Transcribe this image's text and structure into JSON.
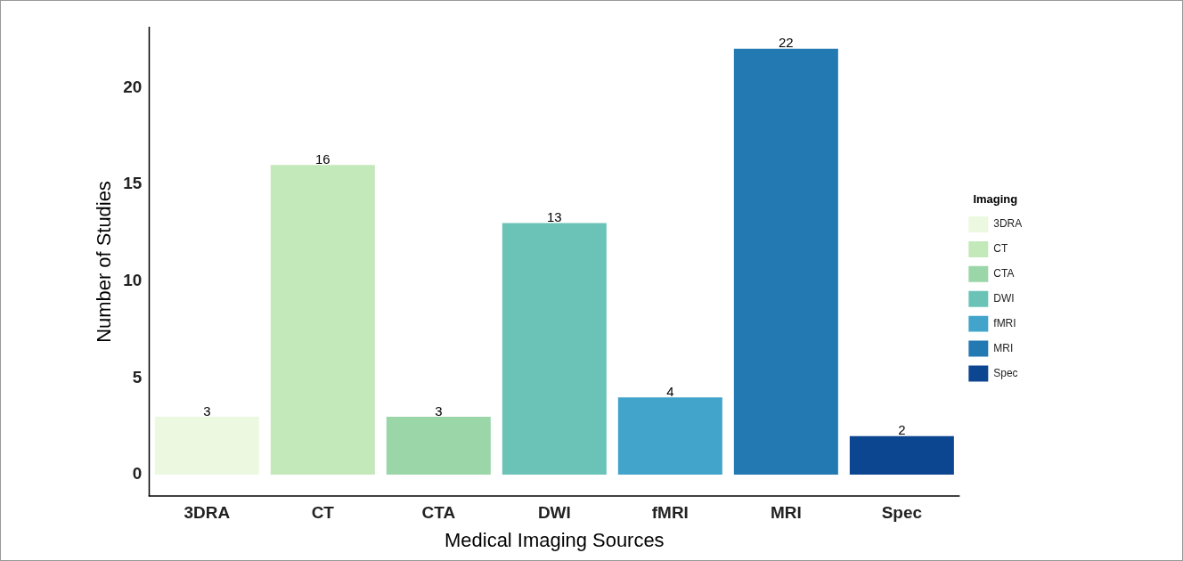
{
  "chart_data": {
    "type": "bar",
    "xlabel": "Medical Imaging Sources",
    "ylabel": "Number of Studies",
    "legend_title": "Imaging",
    "categories": [
      "3DRA",
      "CT",
      "CTA",
      "DWI",
      "fMRI",
      "MRI",
      "Spec"
    ],
    "series": [
      {
        "name": "3DRA",
        "color": "#edf8e1",
        "values": [
          3,
          null,
          null,
          null,
          null,
          null,
          null
        ]
      },
      {
        "name": "CT",
        "color": "#c3e8b9",
        "values": [
          null,
          16,
          null,
          null,
          null,
          null,
          null
        ]
      },
      {
        "name": "CTA",
        "color": "#9ad6a8",
        "values": [
          null,
          null,
          3,
          null,
          null,
          null,
          null
        ]
      },
      {
        "name": "DWI",
        "color": "#6bc3b8",
        "values": [
          null,
          null,
          null,
          13,
          null,
          null,
          null
        ]
      },
      {
        "name": "fMRI",
        "color": "#42a4cb",
        "values": [
          null,
          null,
          null,
          null,
          4,
          null,
          null
        ]
      },
      {
        "name": "MRI",
        "color": "#2379b1",
        "values": [
          null,
          null,
          null,
          null,
          null,
          22,
          null
        ]
      },
      {
        "name": "Spec",
        "color": "#0c4590",
        "values": [
          null,
          null,
          null,
          null,
          null,
          null,
          2
        ]
      }
    ],
    "ylim": [
      -1.1,
      23.1
    ],
    "yticks": [
      0,
      5,
      10,
      15,
      20
    ],
    "grid": false,
    "legend": "right",
    "data_labels": true
  }
}
